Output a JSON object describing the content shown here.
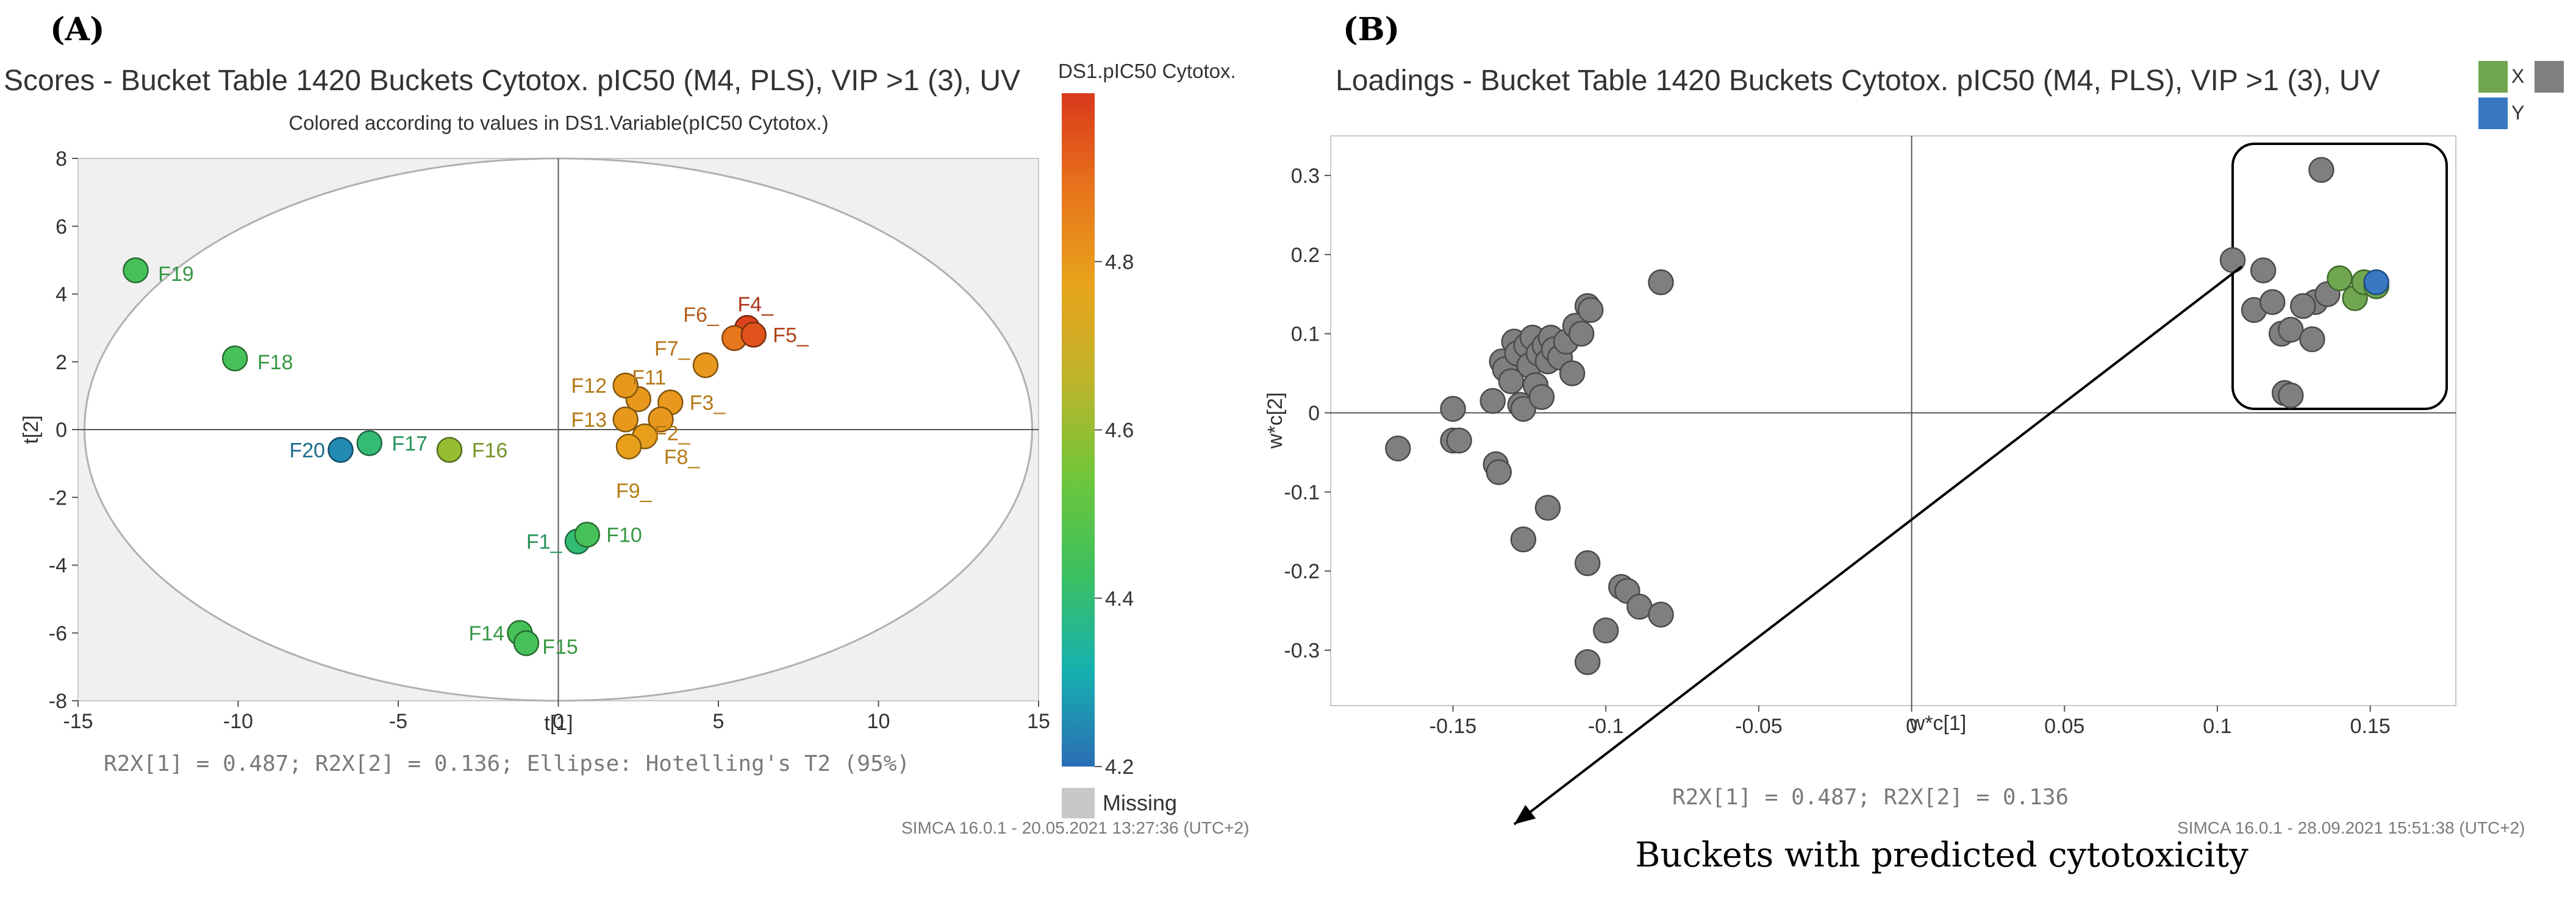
{
  "panels": {
    "a_letter": "(A)",
    "b_letter": "(B)",
    "caption": "Buckets with predicted cytotoxicity"
  },
  "chart_data": [
    {
      "type": "scatter",
      "title": "Scores - Bucket Table 1420 Buckets Cytotox. pIC50 (M4, PLS), VIP >1 (3), UV",
      "subtitle": "Colored according to values in DS1.Variable(pIC50 Cytotox.)",
      "xlabel": "t[1]",
      "ylabel": "t[2]",
      "xlim": [
        -15,
        15
      ],
      "ylim": [
        -8,
        8
      ],
      "xticks": [
        -15,
        -10,
        -5,
        0,
        5,
        10,
        15
      ],
      "yticks": [
        -8,
        -6,
        -4,
        -2,
        0,
        2,
        4,
        6,
        8
      ],
      "footer": "R2X[1] = 0.487; R2X[2] = 0.136; Ellipse: Hotelling's T2 (95%)",
      "software": "SIMCA 16.0.1 - 20.05.2021 13:27:36 (UTC+2)",
      "ellipse": {
        "rx": 14.8,
        "ry": 8.0
      },
      "colorbar": {
        "title": "DS1.pIC50 Cytotox.",
        "min": 4.2,
        "max": 5.0,
        "ticks": [
          4.2,
          4.4,
          4.6,
          4.8
        ],
        "missing_label": "Missing",
        "missing_color": "#c8c8c8",
        "gradient": [
          "#2b6cb5",
          "#16b1b0",
          "#3cc060",
          "#6fc63a",
          "#bdb52b",
          "#e8a41c",
          "#e8741c",
          "#d9391c"
        ]
      },
      "points": [
        {
          "label": "F19",
          "x": -13.2,
          "y": 4.7,
          "c": 4.45,
          "lx": 0.7,
          "ly": -0.1
        },
        {
          "label": "F18",
          "x": -10.1,
          "y": 2.1,
          "c": 4.45,
          "lx": 0.7,
          "ly": -0.1
        },
        {
          "label": "F20",
          "x": -6.8,
          "y": -0.6,
          "c": 4.25,
          "lx": -1.6,
          "ly": 0
        },
        {
          "label": "F17",
          "x": -5.9,
          "y": -0.4,
          "c": 4.4,
          "lx": 0.7,
          "ly": 0
        },
        {
          "label": "F16",
          "x": -3.4,
          "y": -0.6,
          "c": 4.6,
          "lx": 0.7,
          "ly": 0
        },
        {
          "label": "F1_",
          "x": 0.6,
          "y": -3.3,
          "c": 4.4,
          "lx": -1.6,
          "ly": 0
        },
        {
          "label": "F10",
          "x": 0.9,
          "y": -3.1,
          "c": 4.45,
          "lx": 0.6,
          "ly": 0
        },
        {
          "label": "F14",
          "x": -1.2,
          "y": -6.0,
          "c": 4.45,
          "lx": -1.6,
          "ly": 0
        },
        {
          "label": "F15",
          "x": -1.0,
          "y": -6.3,
          "c": 4.45,
          "lx": 0.5,
          "ly": -0.1
        },
        {
          "label": "F4_",
          "x": 5.9,
          "y": 3.0,
          "c": 4.98,
          "lx": -0.3,
          "ly": 0.7
        },
        {
          "label": "F6_",
          "x": 5.5,
          "y": 2.7,
          "c": 4.88,
          "lx": -1.6,
          "ly": 0.7
        },
        {
          "label": "F5_",
          "x": 6.1,
          "y": 2.8,
          "c": 4.95,
          "lx": 0.6,
          "ly": 0
        },
        {
          "label": "F7_",
          "x": 4.6,
          "y": 1.9,
          "c": 4.8,
          "lx": -1.6,
          "ly": 0.5
        },
        {
          "label": "F11",
          "x": 2.5,
          "y": 0.9,
          "c": 4.8,
          "lx": -0.2,
          "ly": 0.65
        },
        {
          "label": "F12",
          "x": 2.1,
          "y": 1.3,
          "c": 4.8,
          "lx": -1.7,
          "ly": 0
        },
        {
          "label": "F3_",
          "x": 3.5,
          "y": 0.8,
          "c": 4.8,
          "lx": 0.6,
          "ly": 0
        },
        {
          "label": "F13",
          "x": 2.1,
          "y": 0.3,
          "c": 4.8,
          "lx": -1.7,
          "ly": 0
        },
        {
          "label": "F2_",
          "x": 3.2,
          "y": 0.3,
          "c": 4.8,
          "lx": -0.2,
          "ly": -0.4
        },
        {
          "label": "F8_",
          "x": 2.7,
          "y": -0.2,
          "c": 4.78,
          "lx": 0.6,
          "ly": -0.6
        },
        {
          "label": "F9_",
          "x": 2.2,
          "y": -0.5,
          "c": 4.78,
          "lx": -0.4,
          "ly": -1.3
        }
      ]
    },
    {
      "type": "scatter",
      "title": "Loadings - Bucket Table 1420 Buckets Cytotox. pIC50 (M4, PLS), VIP >1 (3), UV",
      "xlabel": "w*c[1]",
      "ylabel": "w*c[2]",
      "xlim": [
        -0.19,
        0.178
      ],
      "ylim": [
        -0.37,
        0.35
      ],
      "xticks": [
        -0.15,
        -0.1,
        -0.05,
        0,
        0.05,
        0.1,
        0.15
      ],
      "yticks": [
        -0.3,
        -0.2,
        -0.1,
        0,
        0.1,
        0.2,
        0.3
      ],
      "xtick_labels": [
        "-0.15",
        "-0.1",
        "-0.05",
        "0",
        "0.05",
        "0.1",
        "0.15"
      ],
      "ytick_labels": [
        "-0.3",
        "-0.2",
        "-0.1",
        "0",
        "0.1",
        "0.2",
        "0.3"
      ],
      "footer": "R2X[1] = 0.487; R2X[2] = 0.136",
      "software": "SIMCA 16.0.1 - 28.09.2021 15:51:38 (UTC+2)",
      "legend": [
        {
          "label": "X",
          "colors": [
            "#6fa64f",
            "#7f7f7f"
          ]
        },
        {
          "label": "Y",
          "colors": [
            "#3a78c2"
          ]
        }
      ],
      "colors": {
        "x_gray": "#7f7f7f",
        "x_green": "#6fa64f",
        "y_blue": "#3a78c2"
      },
      "highlight_box": {
        "x0": 0.105,
        "x1": 0.175,
        "y0": 0.005,
        "y1": 0.34
      },
      "arrow": {
        "from": [
          0.108,
          0.185
        ],
        "to": [
          -0.13,
          -0.52
        ]
      },
      "x_gray": [
        [
          -0.168,
          -0.045
        ],
        [
          -0.15,
          0.005
        ],
        [
          -0.15,
          -0.035
        ],
        [
          -0.148,
          -0.035
        ],
        [
          -0.137,
          0.015
        ],
        [
          -0.136,
          -0.065
        ],
        [
          -0.135,
          -0.075
        ],
        [
          -0.134,
          0.065
        ],
        [
          -0.133,
          0.055
        ],
        [
          -0.131,
          0.04
        ],
        [
          -0.13,
          0.09
        ],
        [
          -0.129,
          0.075
        ],
        [
          -0.128,
          0.01
        ],
        [
          -0.127,
          0.005
        ],
        [
          -0.126,
          0.085
        ],
        [
          -0.125,
          0.06
        ],
        [
          -0.124,
          0.095
        ],
        [
          -0.123,
          0.035
        ],
        [
          -0.122,
          0.075
        ],
        [
          -0.121,
          0.02
        ],
        [
          -0.12,
          0.085
        ],
        [
          -0.119,
          0.065
        ],
        [
          -0.118,
          0.095
        ],
        [
          -0.117,
          0.08
        ],
        [
          -0.115,
          0.07
        ],
        [
          -0.113,
          0.09
        ],
        [
          -0.111,
          0.05
        ],
        [
          -0.11,
          0.11
        ],
        [
          -0.108,
          0.1
        ],
        [
          -0.106,
          0.135
        ],
        [
          -0.105,
          0.13
        ],
        [
          -0.082,
          0.165
        ],
        [
          -0.119,
          -0.12
        ],
        [
          -0.127,
          -0.16
        ],
        [
          -0.106,
          -0.19
        ],
        [
          -0.095,
          -0.22
        ],
        [
          -0.093,
          -0.225
        ],
        [
          -0.089,
          -0.245
        ],
        [
          -0.082,
          -0.255
        ],
        [
          -0.1,
          -0.275
        ],
        [
          -0.106,
          -0.315
        ],
        [
          0.105,
          0.193
        ],
        [
          0.115,
          0.18
        ],
        [
          0.134,
          0.307
        ],
        [
          0.112,
          0.13
        ],
        [
          0.118,
          0.14
        ],
        [
          0.121,
          0.1
        ],
        [
          0.124,
          0.105
        ],
        [
          0.122,
          0.025
        ],
        [
          0.124,
          0.022
        ],
        [
          0.131,
          0.093
        ],
        [
          0.132,
          0.14
        ],
        [
          0.136,
          0.15
        ],
        [
          0.128,
          0.135
        ]
      ],
      "x_green": [
        [
          0.14,
          0.17
        ],
        [
          0.145,
          0.145
        ],
        [
          0.148,
          0.165
        ],
        [
          0.152,
          0.16
        ]
      ],
      "y_points": [
        [
          0.152,
          0.165
        ]
      ]
    }
  ]
}
